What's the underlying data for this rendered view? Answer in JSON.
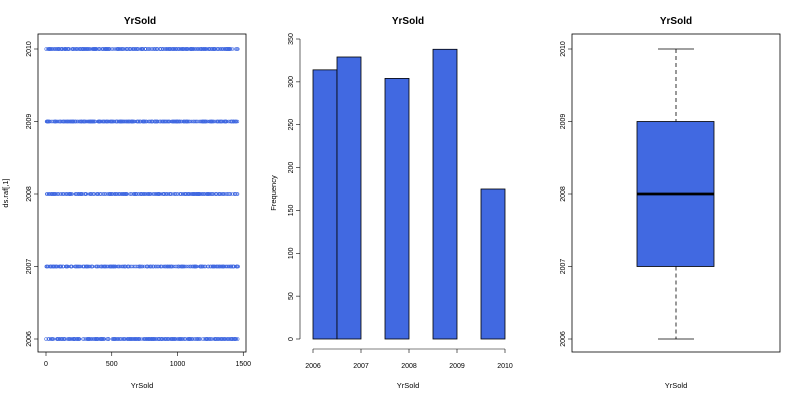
{
  "colors": {
    "fill": "#4169E1",
    "stroke": "#000000",
    "background": "#ffffff"
  },
  "chart_data": [
    {
      "type": "scatter",
      "title": "YrSold",
      "xlabel": "YrSold",
      "ylabel": "ds.raf[,1]",
      "xlim": [
        0,
        1460
      ],
      "ylim": [
        2006,
        2010
      ],
      "xticks": [
        0,
        500,
        1000,
        1500
      ],
      "yticks": [
        2006,
        2007,
        2008,
        2009,
        2010
      ],
      "n_points": 1460,
      "y_levels": [
        2006,
        2007,
        2008,
        2009,
        2010
      ],
      "marker": "open-circle"
    },
    {
      "type": "bar",
      "title": "YrSold",
      "xlabel": "YrSold",
      "ylabel": "Frequency",
      "bins": [
        {
          "from": 2006.0,
          "to": 2006.5,
          "value": 314
        },
        {
          "from": 2006.5,
          "to": 2007.0,
          "value": 329
        },
        {
          "from": 2007.0,
          "to": 2007.5,
          "value": 0
        },
        {
          "from": 2007.5,
          "to": 2008.0,
          "value": 304
        },
        {
          "from": 2008.0,
          "to": 2008.5,
          "value": 0
        },
        {
          "from": 2008.5,
          "to": 2009.0,
          "value": 338
        },
        {
          "from": 2009.0,
          "to": 2009.5,
          "value": 0
        },
        {
          "from": 2009.5,
          "to": 2010.0,
          "value": 175
        }
      ],
      "xlim": [
        2006,
        2010
      ],
      "ylim": [
        0,
        350
      ],
      "xticks": [
        2006,
        2007,
        2008,
        2009,
        2010
      ],
      "yticks": [
        0,
        50,
        100,
        150,
        200,
        250,
        300,
        350
      ]
    },
    {
      "type": "box",
      "title": "YrSold",
      "xlabel": "YrSold",
      "min": 2006,
      "q1": 2007,
      "median": 2008,
      "q3": 2009,
      "max": 2010,
      "ylim": [
        2006,
        2010
      ],
      "yticks": [
        2006,
        2007,
        2008,
        2009,
        2010
      ]
    }
  ]
}
